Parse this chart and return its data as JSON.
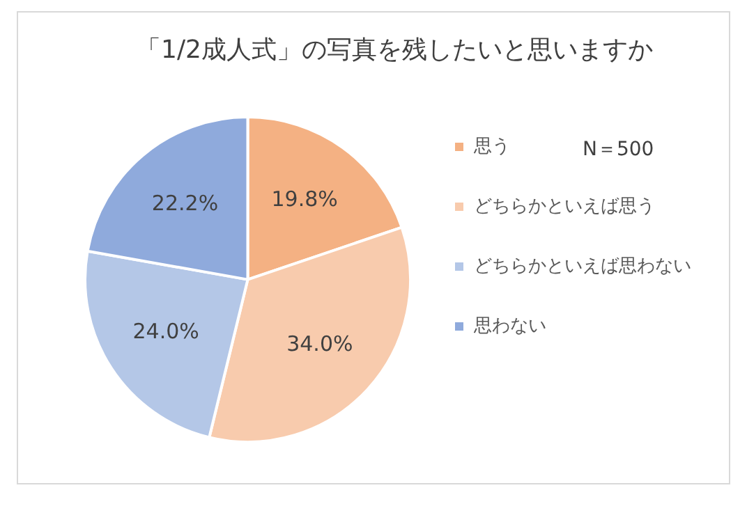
{
  "chart_data": {
    "type": "pie",
    "title": "「1/2成人式」の写真を残したいと思いますか",
    "categories": [
      "思う",
      "どちらかといえば思う",
      "どちらかといえば思わない",
      "思わない"
    ],
    "values": [
      19.8,
      34.0,
      24.0,
      22.2
    ],
    "value_labels": [
      "19.8%",
      "34.0%",
      "24.0%",
      "22.2%"
    ],
    "colors": [
      "#f4b183",
      "#f8cbad",
      "#b4c7e7",
      "#8faadc"
    ],
    "legend": "right",
    "annotations": [
      "N＝500"
    ]
  }
}
